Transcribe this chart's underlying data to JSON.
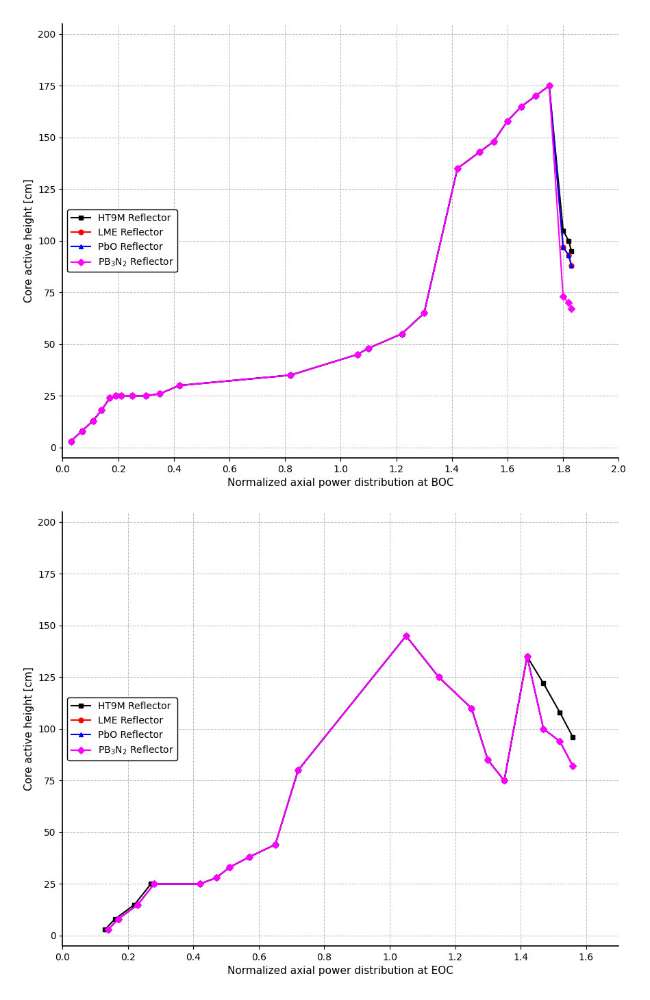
{
  "boc": {
    "xlabel": "Normalized axial power distribution at BOC",
    "ylabel": "Core active height [cm]",
    "xlim": [
      0.0,
      2.0
    ],
    "ylim": [
      -5,
      205
    ],
    "xticks": [
      0.0,
      0.2,
      0.4,
      0.6,
      0.8,
      1.0,
      1.2,
      1.4,
      1.6,
      1.8,
      2.0
    ],
    "yticks": [
      0,
      25,
      50,
      75,
      100,
      125,
      150,
      175,
      200
    ],
    "series": [
      {
        "label": "HT9M Reflector",
        "color": "#000000",
        "marker": "s",
        "x": [
          0.03,
          0.07,
          0.11,
          0.13,
          0.15,
          0.17,
          0.2,
          0.3,
          0.45,
          0.8,
          1.05,
          1.1,
          1.2,
          1.3,
          1.45,
          1.5,
          1.55,
          1.6,
          1.65,
          1.7,
          1.75,
          1.8,
          1.82,
          1.83
        ],
        "y": [
          5,
          10,
          15,
          20,
          25,
          25,
          25,
          25,
          30,
          35,
          45,
          50,
          55,
          65,
          130,
          135,
          145,
          160,
          165,
          170,
          175,
          105,
          100,
          95
        ]
      },
      {
        "label": "LME Reflector",
        "color": "#ff0000",
        "marker": "o",
        "x": [
          0.03,
          0.07,
          0.11,
          0.13,
          0.15,
          0.17,
          0.2,
          0.3,
          0.45,
          0.8,
          1.05,
          1.1,
          1.2,
          1.3,
          1.45,
          1.5,
          1.55,
          1.6,
          1.65,
          1.7,
          1.75,
          1.8,
          1.82,
          1.83
        ],
        "y": [
          5,
          10,
          15,
          20,
          25,
          25,
          25,
          25,
          30,
          35,
          45,
          50,
          55,
          65,
          130,
          135,
          145,
          160,
          165,
          170,
          175,
          95,
          92,
          88
        ]
      },
      {
        "label": "PbO Reflector",
        "color": "#0000ff",
        "marker": "^",
        "x": [
          0.03,
          0.07,
          0.11,
          0.13,
          0.15,
          0.17,
          0.2,
          0.3,
          0.45,
          0.8,
          1.05,
          1.1,
          1.2,
          1.3,
          1.45,
          1.5,
          1.55,
          1.6,
          1.65,
          1.7,
          1.75,
          1.8,
          1.82,
          1.83
        ],
        "y": [
          5,
          10,
          15,
          20,
          25,
          25,
          25,
          25,
          30,
          35,
          45,
          50,
          55,
          65,
          130,
          135,
          145,
          160,
          165,
          170,
          175,
          95,
          92,
          88
        ]
      },
      {
        "label": "PB$_3$N$_2$ Reflector",
        "color": "#ff00ff",
        "marker": "D",
        "x": [
          0.03,
          0.07,
          0.11,
          0.13,
          0.15,
          0.17,
          0.2,
          0.3,
          0.45,
          0.8,
          1.05,
          1.1,
          1.2,
          1.3,
          1.45,
          1.5,
          1.55,
          1.6,
          1.65,
          1.7,
          1.75,
          1.8,
          1.82,
          1.83
        ],
        "y": [
          5,
          10,
          15,
          20,
          25,
          25,
          25,
          25,
          30,
          35,
          45,
          50,
          55,
          65,
          130,
          135,
          145,
          160,
          165,
          170,
          175,
          75,
          72,
          68
        ]
      }
    ]
  },
  "eoc": {
    "xlabel": "Normalized axial power distribution at EOC",
    "ylabel": "Core active height [cm]",
    "xlim": [
      0.0,
      1.7
    ],
    "ylim": [
      -5,
      205
    ],
    "xticks": [
      0.0,
      0.2,
      0.4,
      0.6,
      0.8,
      1.0,
      1.2,
      1.4,
      1.6
    ],
    "yticks": [
      0,
      25,
      50,
      75,
      100,
      125,
      150,
      175,
      200
    ],
    "series": [
      {
        "label": "HT9M Reflector",
        "color": "#000000",
        "marker": "s",
        "x": [
          0.13,
          0.18,
          0.25,
          0.4,
          0.45,
          0.5,
          0.55,
          0.6,
          0.65,
          1.1,
          1.2,
          1.25,
          1.3,
          1.35,
          1.4,
          1.45,
          1.5,
          1.55,
          1.6
        ],
        "y": [
          5,
          10,
          25,
          25,
          30,
          35,
          40,
          50,
          80,
          145,
          125,
          110,
          85,
          75,
          135,
          115,
          105,
          95,
          95
        ]
      },
      {
        "label": "LME Reflector",
        "color": "#ff0000",
        "marker": "o",
        "x": [
          0.15,
          0.19,
          0.25,
          0.4,
          0.45,
          0.5,
          0.55,
          0.6,
          0.65,
          1.1,
          1.2,
          1.25,
          1.3,
          1.35,
          1.4,
          1.45,
          1.5,
          1.55,
          1.6
        ],
        "y": [
          5,
          10,
          25,
          25,
          30,
          35,
          40,
          50,
          80,
          145,
          125,
          110,
          85,
          75,
          135,
          100,
          93,
          80,
          80
        ]
      },
      {
        "label": "PbO Reflector",
        "color": "#0000ff",
        "marker": "^",
        "x": [
          0.15,
          0.19,
          0.25,
          0.4,
          0.45,
          0.5,
          0.55,
          0.6,
          0.65,
          1.1,
          1.2,
          1.25,
          1.3,
          1.35,
          1.4,
          1.45,
          1.5,
          1.55,
          1.6
        ],
        "y": [
          5,
          10,
          25,
          25,
          30,
          35,
          40,
          50,
          80,
          145,
          125,
          110,
          85,
          75,
          135,
          103,
          95,
          82,
          80
        ]
      },
      {
        "label": "PB$_3$N$_2$ Reflector",
        "color": "#ff00ff",
        "marker": "D",
        "x": [
          0.15,
          0.19,
          0.25,
          0.4,
          0.45,
          0.5,
          0.55,
          0.6,
          0.65,
          1.1,
          1.2,
          1.25,
          1.3,
          1.35,
          1.4,
          1.45,
          1.5,
          1.55,
          1.6
        ],
        "y": [
          5,
          10,
          25,
          25,
          30,
          35,
          40,
          50,
          80,
          145,
          125,
          110,
          85,
          75,
          135,
          103,
          95,
          82,
          80
        ]
      }
    ]
  },
  "background_color": "#ffffff",
  "grid_color": "#aaaaaa",
  "title_fontsize": 11,
  "label_fontsize": 11,
  "tick_fontsize": 10,
  "legend_fontsize": 10,
  "marker_size": 5,
  "line_width": 1.5
}
